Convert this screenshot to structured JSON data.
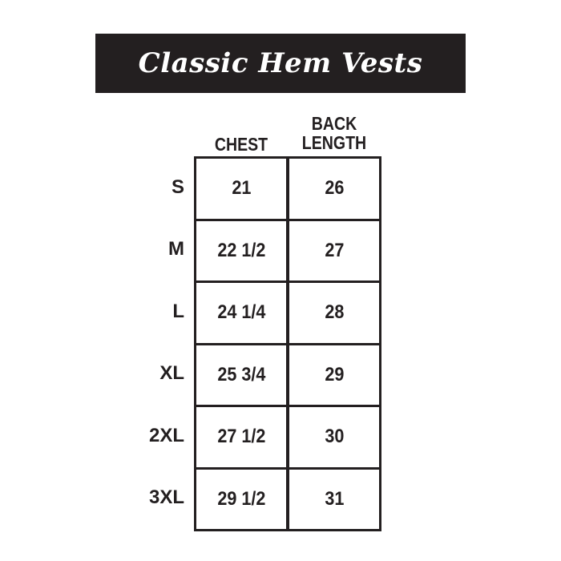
{
  "title": "Classic Hem Vests",
  "columns": [
    "CHEST",
    "BACK LENGTH"
  ],
  "column_lines": [
    [
      "CHEST"
    ],
    [
      "BACK",
      "LENGTH"
    ]
  ],
  "rows": [
    {
      "size": "S",
      "chest": "21",
      "back_length": "26"
    },
    {
      "size": "M",
      "chest": "22 1/2",
      "back_length": "27"
    },
    {
      "size": "L",
      "chest": "24 1/4",
      "back_length": "28"
    },
    {
      "size": "XL",
      "chest": "25 3/4",
      "back_length": "29"
    },
    {
      "size": "2XL",
      "chest": "27 1/2",
      "back_length": "30"
    },
    {
      "size": "3XL",
      "chest": "29 1/2",
      "back_length": "31"
    }
  ],
  "colors": {
    "banner": "#231f20",
    "text": "#231f20",
    "background": "#ffffff"
  }
}
